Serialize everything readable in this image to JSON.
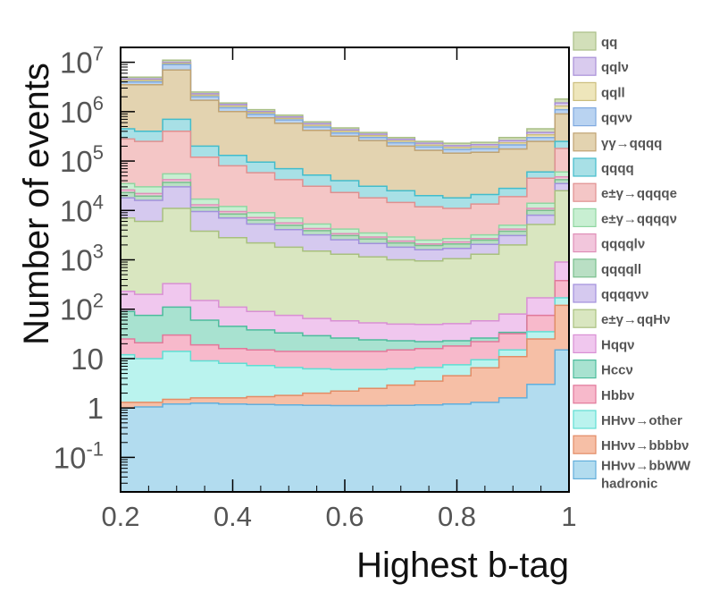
{
  "chart_data": {
    "type": "area",
    "stacked": true,
    "log_y": true,
    "title": "",
    "xlabel": "Highest b-tag",
    "ylabel": "Number of events",
    "xlim": [
      0.2,
      1.0
    ],
    "ylim": [
      0.02,
      20000000
    ],
    "grid": false,
    "legend_position": "right",
    "x_ticks": [
      {
        "v": 0.2,
        "label": "0.2"
      },
      {
        "v": 0.4,
        "label": "0.4"
      },
      {
        "v": 0.6,
        "label": "0.6"
      },
      {
        "v": 0.8,
        "label": "0.8"
      },
      {
        "v": 1.0,
        "label": "1"
      }
    ],
    "y_ticks": [
      {
        "v": 0.1,
        "base": "10",
        "exp": "-1"
      },
      {
        "v": 1,
        "base": "1",
        "exp": ""
      },
      {
        "v": 10,
        "base": "10",
        "exp": ""
      },
      {
        "v": 100,
        "base": "10",
        "exp": "2"
      },
      {
        "v": 1000,
        "base": "10",
        "exp": "3"
      },
      {
        "v": 10000,
        "base": "10",
        "exp": "4"
      },
      {
        "v": 100000,
        "base": "10",
        "exp": "5"
      },
      {
        "v": 1000000,
        "base": "10",
        "exp": "6"
      },
      {
        "v": 10000000,
        "base": "10",
        "exp": "7"
      }
    ],
    "x": [
      0.2,
      0.25,
      0.3,
      0.35,
      0.4,
      0.45,
      0.5,
      0.55,
      0.6,
      0.65,
      0.7,
      0.75,
      0.8,
      0.85,
      0.9,
      0.95,
      1.0
    ],
    "series": [
      {
        "name": "qq",
        "color": "#d2dfb9",
        "edge": "#a9bf87",
        "cumulative": [
          5000000,
          5000000,
          11000000,
          2500000,
          1500000,
          1100000,
          850000,
          620000,
          470000,
          380000,
          300000,
          250000,
          230000,
          240000,
          300000,
          450000,
          1800000
        ]
      },
      {
        "name": "qqlν",
        "color": "#d9cbee",
        "edge": "#a98fd8",
        "cumulative": [
          4600000,
          4600000,
          10000000,
          2300000,
          1400000,
          1000000,
          780000,
          570000,
          430000,
          350000,
          275000,
          230000,
          205000,
          215000,
          260000,
          380000,
          1500000
        ]
      },
      {
        "name": "qqll",
        "color": "#eee6bb",
        "edge": "#cbbd7c",
        "cumulative": [
          4300000,
          4300000,
          9500000,
          2150000,
          1300000,
          950000,
          730000,
          530000,
          400000,
          325000,
          255000,
          210000,
          188000,
          195000,
          235000,
          340000,
          1300000
        ]
      },
      {
        "name": "qqνν",
        "color": "#b9d3f1",
        "edge": "#7fa9e0",
        "cumulative": [
          4000000,
          4000000,
          9000000,
          2000000,
          1200000,
          880000,
          680000,
          490000,
          370000,
          300000,
          235000,
          193000,
          172000,
          178000,
          212000,
          300000,
          1100000
        ]
      },
      {
        "name": "γγ→qqqq",
        "color": "#e3d3b0",
        "edge": "#c0a373",
        "cumulative": [
          3500000,
          3500000,
          7000000,
          1700000,
          1000000,
          750000,
          580000,
          420000,
          320000,
          260000,
          200000,
          165000,
          145000,
          150000,
          175000,
          250000,
          900000
        ]
      },
      {
        "name": "qqqq",
        "color": "#a8e0e6",
        "edge": "#42bccb",
        "cumulative": [
          450000,
          400000,
          700000,
          200000,
          130000,
          95000,
          70000,
          52000,
          40000,
          31000,
          25000,
          20000,
          18000,
          21000,
          28000,
          60000,
          250000
        ]
      },
      {
        "name": "e±γ→qqqqe",
        "color": "#f4c6c6",
        "edge": "#e08f8f",
        "cumulative": [
          280000,
          250000,
          400000,
          120000,
          80000,
          58000,
          42000,
          31000,
          23000,
          18000,
          14500,
          11800,
          11000,
          13500,
          19000,
          45000,
          180000
        ]
      },
      {
        "name": "e±γ→qqqqν",
        "color": "#c8efd2",
        "edge": "#8fd6a1",
        "cumulative": [
          35000,
          30000,
          55000,
          17000,
          12000,
          9000,
          7000,
          5300,
          4200,
          3500,
          2900,
          2500,
          2700,
          3200,
          5000,
          14000,
          60000
        ]
      },
      {
        "name": "qqqqlν",
        "color": "#f2c6dc",
        "edge": "#df8fb8",
        "cumulative": [
          26000,
          22000,
          42000,
          13000,
          9500,
          7200,
          5600,
          4300,
          3400,
          2900,
          2400,
          2100,
          2300,
          2700,
          4200,
          11000,
          48000
        ]
      },
      {
        "name": "qqqqll",
        "color": "#b9dfc4",
        "edge": "#79bf8d",
        "cumulative": [
          23000,
          19500,
          37000,
          11500,
          8500,
          6400,
          5000,
          3900,
          3100,
          2650,
          2200,
          1950,
          2100,
          2500,
          3800,
          10000,
          42000
        ]
      },
      {
        "name": "qqqqνν",
        "color": "#d5c9ef",
        "edge": "#a290dc",
        "cumulative": [
          18000,
          16000,
          30000,
          9500,
          7000,
          5300,
          4100,
          3200,
          2550,
          2150,
          1800,
          1600,
          1700,
          2050,
          3100,
          8000,
          35000
        ]
      },
      {
        "name": "e±γ→qqHν",
        "color": "#d9e6c0",
        "edge": "#a8c07e",
        "cumulative": [
          7000,
          6000,
          11000,
          3800,
          2800,
          2200,
          1800,
          1500,
          1300,
          1150,
          1000,
          950,
          1050,
          1300,
          2000,
          5200,
          25000
        ]
      },
      {
        "name": "Hqqν",
        "color": "#f0c7ee",
        "edge": "#d98fd4",
        "cumulative": [
          230,
          200,
          330,
          150,
          110,
          90,
          75,
          65,
          58,
          53,
          50,
          49,
          51,
          58,
          80,
          170,
          900
        ]
      },
      {
        "name": "Hccν",
        "color": "#a8e2d0",
        "edge": "#4cbc9c",
        "cumulative": [
          90,
          75,
          110,
          60,
          45,
          38,
          33,
          29,
          26,
          24,
          23,
          22,
          23,
          26,
          34,
          70,
          350
        ]
      },
      {
        "name": "Hbbν",
        "color": "#f7b9cb",
        "edge": "#e1789a",
        "cumulative": [
          25,
          21,
          30,
          19,
          16,
          15,
          14,
          14,
          14,
          14,
          15,
          16,
          18,
          22,
          32,
          75,
          380
        ]
      },
      {
        "name": "HHνν→other",
        "color": "#baf3ee",
        "edge": "#5fded3",
        "cumulative": [
          12,
          10,
          14,
          9,
          8,
          7.2,
          6.6,
          6.2,
          6.0,
          6.0,
          6.2,
          6.6,
          7.5,
          9.5,
          15,
          35,
          170
        ]
      },
      {
        "name": "HHνν→bbbbν",
        "color": "#f6bfa6",
        "edge": "#e38c66",
        "cumulative": [
          1.3,
          1.3,
          1.5,
          1.6,
          1.6,
          1.7,
          1.8,
          2.0,
          2.2,
          2.5,
          2.9,
          3.5,
          4.5,
          6.5,
          11,
          25,
          120
        ]
      },
      {
        "name": "HHνν→bbWW hadronic",
        "label_lines": [
          "HHνν→bbWW",
          "hadronic"
        ],
        "color": "#b2dcef",
        "edge": "#62aedb",
        "cumulative": [
          1.0,
          1.05,
          1.2,
          1.25,
          1.2,
          1.18,
          1.15,
          1.13,
          1.12,
          1.12,
          1.13,
          1.15,
          1.2,
          1.3,
          1.6,
          3.0,
          15
        ]
      }
    ]
  }
}
